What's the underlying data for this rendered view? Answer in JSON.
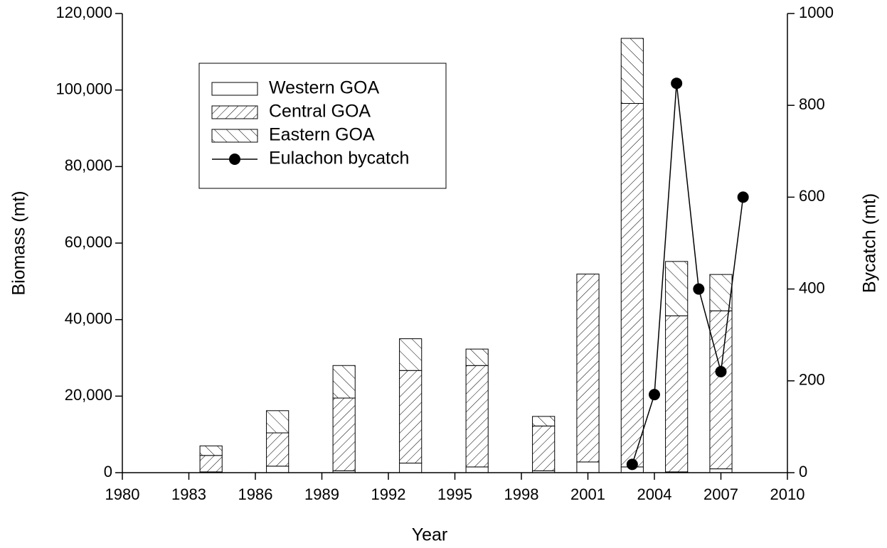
{
  "chart_data": {
    "type": "bar",
    "xlabel": "Year",
    "ylabel": "Biomass (mt)",
    "y2label": "Bycatch (mt)",
    "x": [
      1984,
      1987,
      1990,
      1993,
      1996,
      1999,
      2001,
      2003,
      2005,
      2007
    ],
    "series": [
      {
        "name": "Western GOA",
        "color": "#ffffff",
        "hatch": "none",
        "values": [
          200,
          1700,
          500,
          2500,
          1500,
          500,
          2800,
          1500,
          200,
          1000
        ]
      },
      {
        "name": "Central GOA",
        "color": "#ffffff",
        "hatch": "/",
        "values": [
          4300,
          8700,
          19000,
          24200,
          26500,
          11700,
          49100,
          95000,
          40800,
          41300
        ]
      },
      {
        "name": "Eastern GOA",
        "color": "#ffffff",
        "hatch": "\\",
        "values": [
          2500,
          5800,
          8500,
          8300,
          4300,
          2500,
          0,
          17000,
          14200,
          9500
        ]
      },
      {
        "name": "Eulachon bycatch",
        "type": "line",
        "axis": "y2",
        "color": "#000000",
        "x": [
          2003,
          2004,
          2005,
          2006,
          2007,
          2008
        ],
        "values": [
          18,
          170,
          848,
          400,
          220,
          600
        ]
      }
    ],
    "stacked": true,
    "xlim": [
      1980,
      2010
    ],
    "xticks": [
      1980,
      1983,
      1986,
      1989,
      1992,
      1995,
      1998,
      2001,
      2004,
      2007,
      2010
    ],
    "ylim": [
      0,
      120000
    ],
    "yticks": [
      0,
      {
        "value": 20000,
        "label": "20,000"
      },
      {
        "value": 40000,
        "label": "40,000"
      },
      {
        "value": 60000,
        "label": "60,000"
      },
      {
        "value": 80000,
        "label": "80,000"
      },
      {
        "value": 100000,
        "label": "100,000"
      },
      {
        "value": 120000,
        "label": "120,000"
      }
    ],
    "y2lim": [
      0,
      1000
    ],
    "y2ticks": [
      0,
      200,
      400,
      600,
      800,
      1000
    ],
    "legend": "upper left",
    "grid": false
  }
}
